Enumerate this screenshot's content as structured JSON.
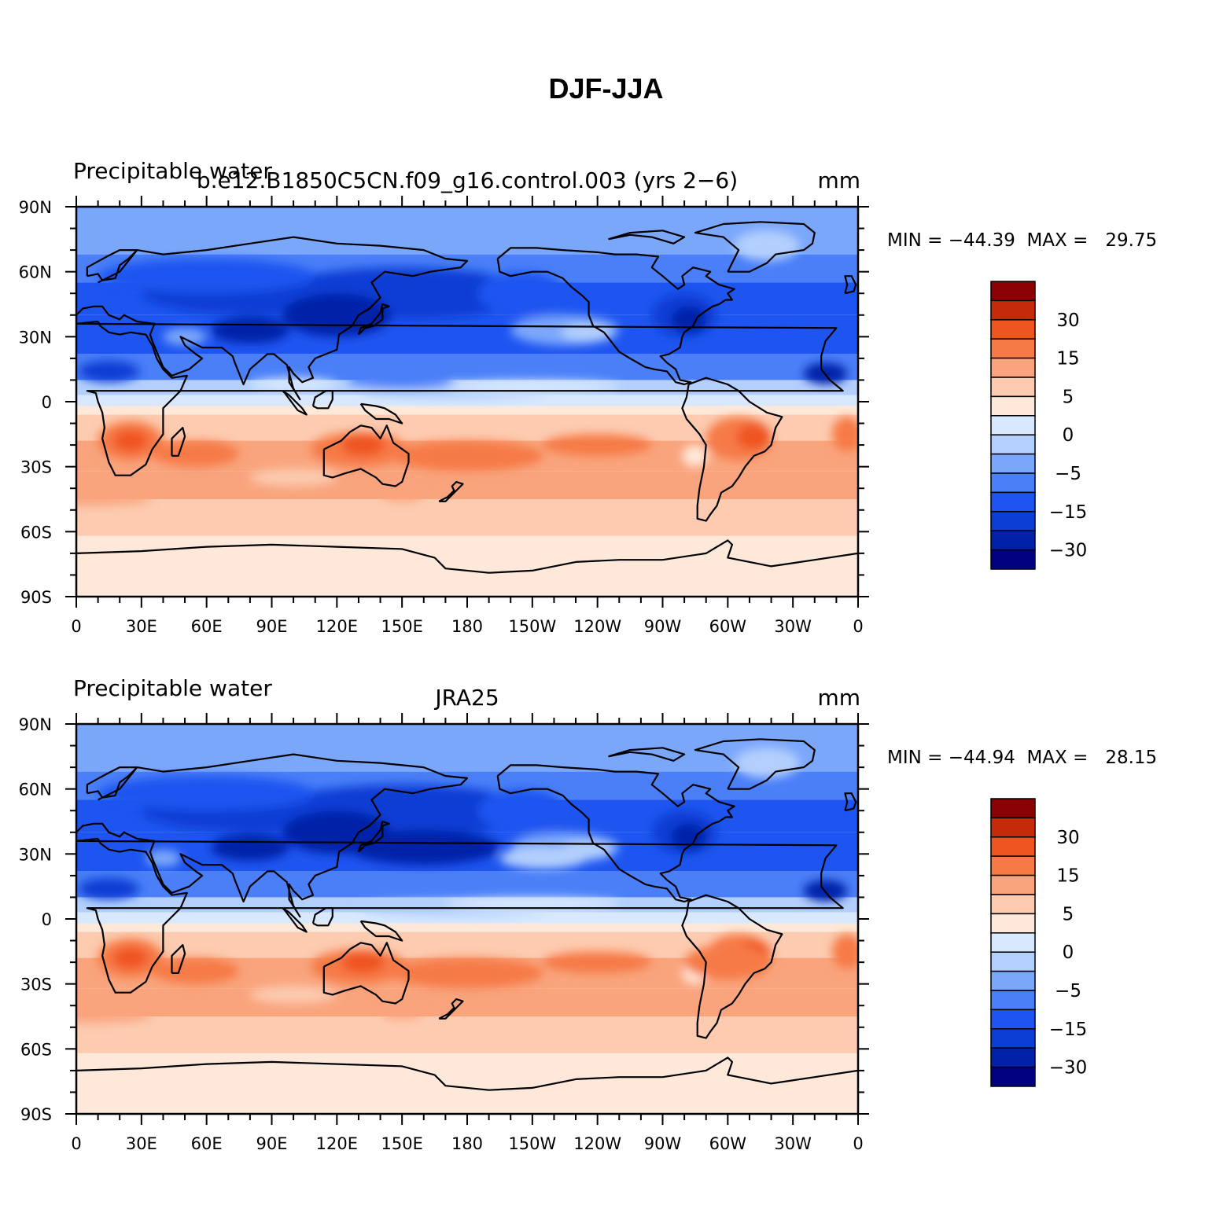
{
  "figure": {
    "title": "DJF-JJA"
  },
  "axes": {
    "lon_ticks": [
      "0",
      "30E",
      "60E",
      "90E",
      "120E",
      "150E",
      "180",
      "150W",
      "120W",
      "90W",
      "60W",
      "30W",
      "0"
    ],
    "lat_ticks": [
      "90N",
      "60N",
      "30N",
      "0",
      "30S",
      "60S",
      "90S"
    ]
  },
  "colorbar": {
    "tick_labels": [
      "30",
      "15",
      "5",
      "0",
      "−5",
      "−15",
      "−30"
    ],
    "colors_bottom_to_top": [
      "#000080",
      "#0022a8",
      "#0b3ed4",
      "#1e55f0",
      "#4a7ff8",
      "#7ba7fb",
      "#b3cffd",
      "#d8e9ff",
      "#fee8d9",
      "#fccbb0",
      "#f9a47d",
      "#f67a46",
      "#ef5521",
      "#c52a0a",
      "#8b0000"
    ]
  },
  "panels": [
    {
      "left_label": "Precipitable water",
      "center_label": "b.e12.B1850C5CN.f09_g16.control.003 (yrs 2−6)",
      "units": "mm",
      "min_max_text": "MIN = −44.39  MAX =   29.75"
    },
    {
      "left_label": "Precipitable water",
      "center_label": "JRA25",
      "units": "mm",
      "min_max_text": "MIN = −44.94  MAX =   28.15"
    }
  ]
}
